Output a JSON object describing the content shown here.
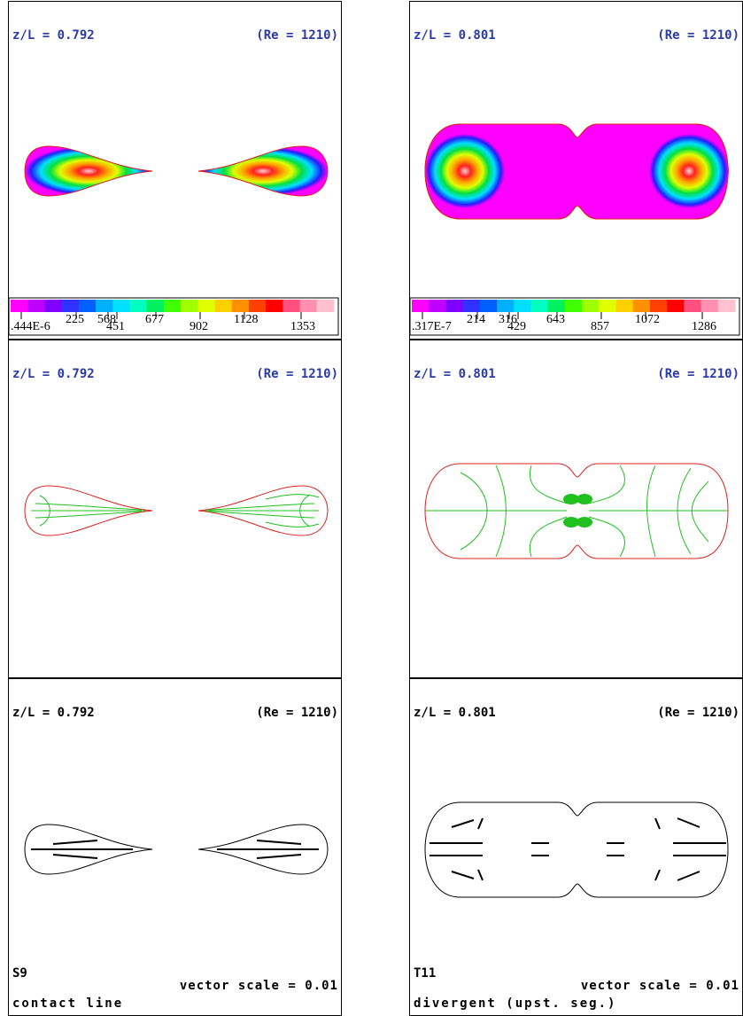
{
  "panels": [
    {
      "title": "z/L = 0.792",
      "re": "(Re = 1210)",
      "colorbar_labels": [
        ".444E-6",
        "225",
        "568",
        "451",
        "677",
        "902",
        "1128",
        "1353"
      ]
    },
    {
      "title": "z/L = 0.801",
      "re": "(Re = 1210)",
      "colorbar_labels": [
        ".317E-7",
        "214",
        "316",
        "429",
        "643",
        "857",
        "1072",
        "1286"
      ]
    },
    {
      "title": "z/L = 0.792",
      "re": "(Re = 1210)"
    },
    {
      "title": "z/L = 0.801",
      "re": "(Re = 1210)"
    },
    {
      "title": "z/L = 0.792",
      "re": "(Re = 1210)",
      "code": "S9",
      "caption": "contact line",
      "scale": "vector scale = 0.01"
    },
    {
      "title": "z/L = 0.801",
      "re": "(Re = 1210)",
      "code": "T11",
      "caption": "divergent (upst. seg.)",
      "scale": "vector scale = 0.01"
    }
  ]
}
